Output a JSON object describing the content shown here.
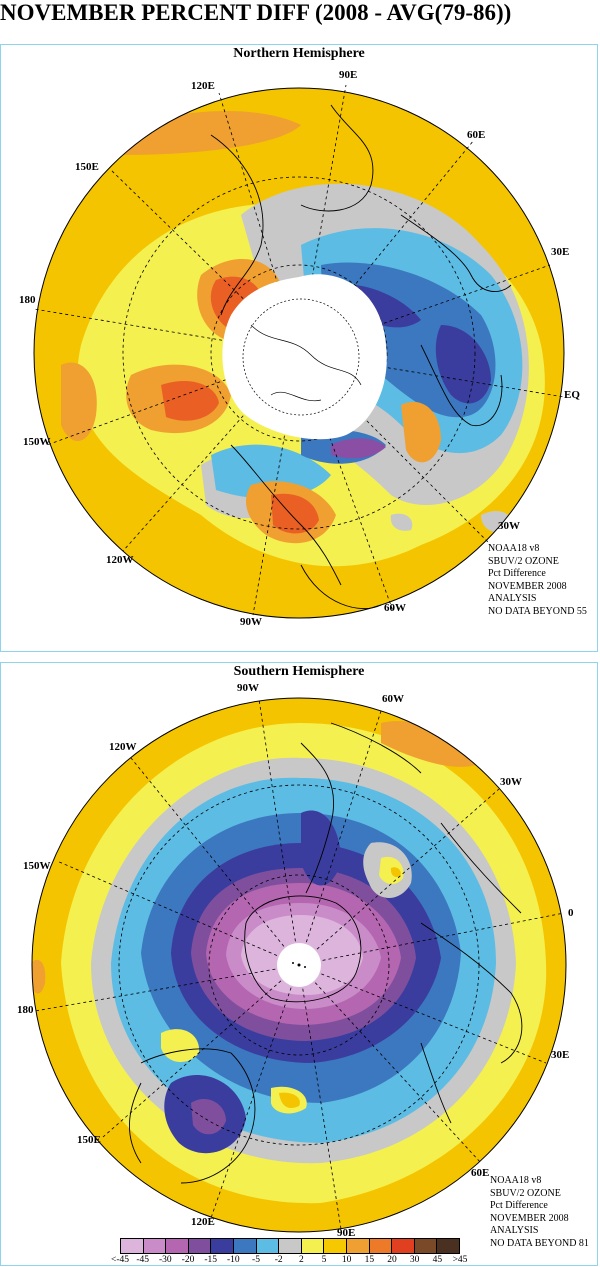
{
  "title": "NOVEMBER PERCENT DIFF (2008 - AVG(79-86))",
  "north": {
    "title": "Northern Hemisphere",
    "lon_labels": [
      "90E",
      "60E",
      "30E",
      "EQ",
      "30W",
      "60W",
      "90W",
      "120W",
      "150W",
      "180",
      "150E",
      "120E"
    ],
    "info": [
      "NOAA18 v8",
      "SBUV/2 OZONE",
      "Pct Difference",
      "NOVEMBER 2008",
      "ANALYSIS",
      "NO DATA BEYOND  55"
    ]
  },
  "south": {
    "title": "Southern Hemisphere",
    "lon_labels": [
      "90W",
      "60W",
      "30W",
      "0",
      "30E",
      "60E",
      "90E",
      "120E",
      "150E",
      "180",
      "150W",
      "120W"
    ],
    "info": [
      "NOAA18 v8",
      "SBUV/2 OZONE",
      "Pct Difference",
      "NOVEMBER 2008",
      "ANALYSIS",
      "NO DATA BEYOND  81"
    ]
  },
  "legend": {
    "labels": [
      "<-45",
      "-45",
      "-30",
      "-20",
      "-15",
      "-10",
      "-5",
      "-2",
      "2",
      "5",
      "10",
      "15",
      "20",
      "30",
      "45",
      ">45"
    ],
    "colors": [
      "#dcb4dc",
      "#c98cc8",
      "#b466b0",
      "#7f4f9e",
      "#3a3d9e",
      "#3c78c0",
      "#5cbce4",
      "#c8c8c8",
      "#f4f050",
      "#f5c800",
      "#f0a030",
      "#ec7a28",
      "#e04020",
      "#7a4a28",
      "#4a3020"
    ]
  },
  "colors": {
    "orange": "#f5c400",
    "light_orange": "#f0a030",
    "red_orange": "#ea6024",
    "yellow": "#f4f050",
    "gray": "#c8c8c8",
    "light_blue": "#5cbce4",
    "mid_blue": "#3c78c0",
    "dark_blue": "#3a3d9e",
    "purple": "#8a4ea4",
    "light_purple": "#dcb4dc",
    "panel_border": "#8fd3ee"
  }
}
